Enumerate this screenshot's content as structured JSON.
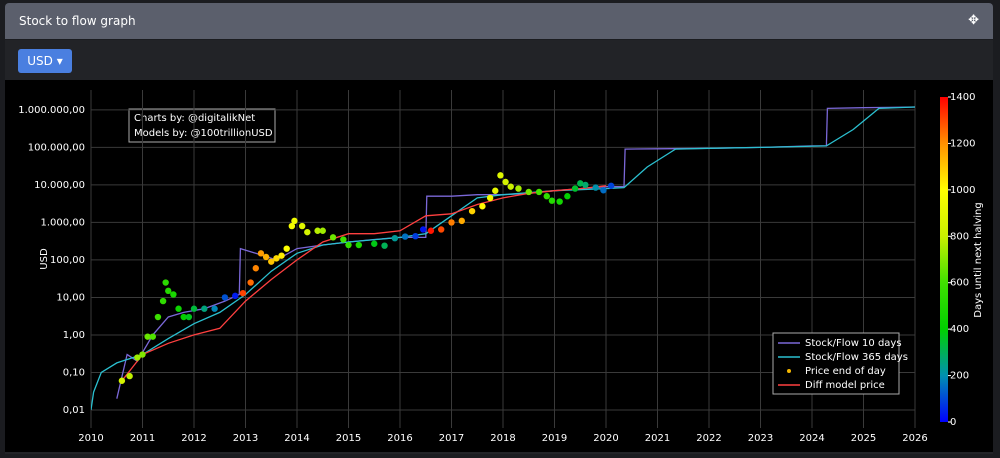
{
  "header": {
    "title": "Stock to flow graph",
    "currency_button": "USD"
  },
  "chart_data": {
    "type": "line",
    "y_label": "USD",
    "log_y": true,
    "grid": true,
    "annotation": [
      "Charts by: @digitalikNet",
      "Models by: @100trillionUSD"
    ],
    "xlim": [
      2010,
      2026
    ],
    "xticks": [
      2010,
      2011,
      2012,
      2013,
      2014,
      2015,
      2016,
      2017,
      2018,
      2019,
      2020,
      2021,
      2022,
      2023,
      2024,
      2025,
      2026
    ],
    "ylim": [
      0.0033,
      3400000
    ],
    "yticks": [
      {
        "value": 0.01,
        "label": "0,01"
      },
      {
        "value": 0.1,
        "label": "0,10"
      },
      {
        "value": 1,
        "label": "1,00"
      },
      {
        "value": 10,
        "label": "10,00"
      },
      {
        "value": 100,
        "label": "100,00"
      },
      {
        "value": 1000,
        "label": "1.000,00"
      },
      {
        "value": 10000,
        "label": "10.000,00"
      },
      {
        "value": 100000,
        "label": "100.000,00"
      },
      {
        "value": 1000000,
        "label": "1.000.000,00"
      }
    ],
    "legend_position": "bottom-right",
    "colorbar": {
      "title": "Days until next halving",
      "lim": [
        0,
        1400
      ],
      "ticks": [
        0,
        200,
        400,
        600,
        800,
        1000,
        1200,
        1400
      ],
      "colorscale": [
        [
          0,
          "#0000ff"
        ],
        [
          200,
          "#0090b0"
        ],
        [
          400,
          "#00d000"
        ],
        [
          600,
          "#40e000"
        ],
        [
          800,
          "#c8f000"
        ],
        [
          1000,
          "#ffff00"
        ],
        [
          1200,
          "#ff9000"
        ],
        [
          1400,
          "#ff0000"
        ]
      ]
    },
    "series": [
      {
        "name": "Stock/Flow 10 days",
        "color": "#7b68d8",
        "type": "line",
        "x": [
          2010.5,
          2010.7,
          2010.9,
          2011.2,
          2011.5,
          2011.8,
          2012.2,
          2012.6,
          2012.88,
          2012.9,
          2013.2,
          2013.6,
          2014,
          2014.5,
          2015,
          2015.5,
          2016,
          2016.5,
          2016.52,
          2017,
          2017.5,
          2018,
          2018.5,
          2019,
          2019.5,
          2020,
          2020.35,
          2020.37,
          2021,
          2022,
          2023,
          2024,
          2024.28,
          2024.3,
          2025,
          2026
        ],
        "values": [
          0.02,
          0.3,
          0.2,
          1,
          3,
          4,
          5,
          8,
          12,
          200,
          150,
          100,
          200,
          250,
          300,
          350,
          400,
          400,
          5000,
          5000,
          5500,
          5500,
          6000,
          7000,
          8000,
          9000,
          9000,
          90000,
          92000,
          95000,
          100000,
          110000,
          110000,
          1100000,
          1150000,
          1200000
        ]
      },
      {
        "name": "Stock/Flow 365 days",
        "color": "#2bc0d0",
        "type": "line",
        "x": [
          2010,
          2010.05,
          2010.2,
          2010.5,
          2011,
          2011.5,
          2012,
          2012.5,
          2013,
          2013.5,
          2014,
          2014.5,
          2015,
          2016,
          2016.5,
          2017,
          2017.5,
          2018,
          2019,
          2020,
          2020.35,
          2020.8,
          2021.35,
          2022,
          2023,
          2024.28,
          2024.8,
          2025.3,
          2026
        ],
        "values": [
          0.01,
          0.03,
          0.1,
          0.18,
          0.3,
          0.8,
          2,
          4,
          12,
          50,
          150,
          250,
          300,
          400,
          500,
          1500,
          4500,
          5500,
          7000,
          8000,
          8500,
          30000,
          90000,
          95000,
          100000,
          110000,
          300000,
          1100000,
          1200000
        ]
      },
      {
        "name": "Price end of day",
        "color": "#f5b700",
        "type": "scatter",
        "x": [
          2010.6,
          2010.75,
          2010.9,
          2011.0,
          2011.1,
          2011.2,
          2011.3,
          2011.4,
          2011.45,
          2011.5,
          2011.6,
          2011.7,
          2011.8,
          2011.9,
          2012.0,
          2012.2,
          2012.4,
          2012.6,
          2012.8,
          2012.95,
          2013.1,
          2013.2,
          2013.3,
          2013.4,
          2013.5,
          2013.6,
          2013.7,
          2013.8,
          2013.9,
          2013.95,
          2014.1,
          2014.2,
          2014.4,
          2014.5,
          2014.7,
          2014.9,
          2015.0,
          2015.2,
          2015.5,
          2015.7,
          2015.9,
          2016.1,
          2016.3,
          2016.45,
          2016.6,
          2016.8,
          2017.0,
          2017.2,
          2017.4,
          2017.6,
          2017.75,
          2017.85,
          2017.95,
          2018.05,
          2018.15,
          2018.3,
          2018.5,
          2018.7,
          2018.85,
          2018.95,
          2019.1,
          2019.25,
          2019.4,
          2019.5,
          2019.6,
          2019.8,
          2019.95,
          2020.1
        ],
        "values": [
          0.06,
          0.08,
          0.25,
          0.3,
          0.9,
          0.9,
          3,
          8,
          25,
          15,
          12,
          5,
          3,
          3,
          5,
          5,
          5,
          10,
          11,
          13,
          25,
          60,
          150,
          120,
          90,
          110,
          130,
          200,
          800,
          1100,
          800,
          550,
          600,
          600,
          400,
          350,
          250,
          250,
          270,
          240,
          380,
          420,
          430,
          650,
          600,
          650,
          1000,
          1100,
          2000,
          2700,
          4500,
          7000,
          18000,
          12000,
          9000,
          8000,
          6500,
          6500,
          5000,
          3800,
          3600,
          5000,
          8000,
          11000,
          10000,
          8500,
          7200,
          9500
        ],
        "days": [
          843,
          788,
          734,
          697,
          661,
          624,
          588,
          551,
          533,
          515,
          478,
          442,
          405,
          369,
          332,
          259,
          186,
          113,
          40,
          1307,
          1252,
          1215,
          1179,
          1142,
          1106,
          1069,
          1033,
          996,
          960,
          942,
          887,
          850,
          777,
          741,
          668,
          595,
          558,
          485,
          376,
          303,
          230,
          157,
          84,
          29,
          1372,
          1299,
          1226,
          1153,
          1080,
          1007,
          953,
          916,
          880,
          843,
          807,
          752,
          679,
          606,
          551,
          515,
          460,
          405,
          350,
          314,
          277,
          204,
          150,
          95
        ]
      },
      {
        "name": "Diff model price",
        "color": "#ff4040",
        "type": "line",
        "x": [
          2010.6,
          2011,
          2011.5,
          2012,
          2012.5,
          2013,
          2013.5,
          2014,
          2014.5,
          2015,
          2015.5,
          2016,
          2016.5,
          2017,
          2017.5,
          2018,
          2018.5,
          2019,
          2019.5,
          2020
        ],
        "values": [
          0.06,
          0.3,
          0.6,
          1,
          1.5,
          8,
          30,
          100,
          300,
          500,
          500,
          600,
          1500,
          1700,
          3000,
          4500,
          6000,
          7000,
          8000,
          9500
        ]
      }
    ]
  }
}
